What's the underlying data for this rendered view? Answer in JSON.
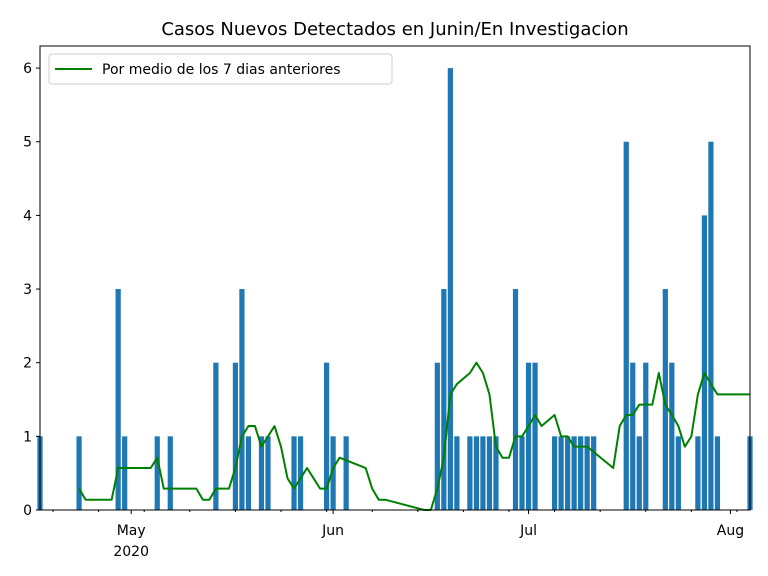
{
  "chart_data": {
    "type": "bar+line",
    "title": "Casos Nuevos Detectados en Junin/En Investigacion",
    "xlabel": "",
    "ylabel": "",
    "x_range": [
      "2020-04-17",
      "2020-08-04"
    ],
    "ylim": [
      0,
      6.3
    ],
    "yticks": [
      0,
      1,
      2,
      3,
      4,
      5,
      6
    ],
    "xticks": [
      {
        "date": "2020-05-01",
        "label": "May",
        "sublabel": "2020"
      },
      {
        "date": "2020-06-01",
        "label": "Jun",
        "sublabel": ""
      },
      {
        "date": "2020-07-01",
        "label": "Jul",
        "sublabel": ""
      },
      {
        "date": "2020-08-01",
        "label": "Aug",
        "sublabel": ""
      }
    ],
    "grid": false,
    "legend_position": "top-left",
    "bar_color": "#1f77b4",
    "line_color": "#008000",
    "bars": {
      "dates": [
        "2020-04-17",
        "2020-04-23",
        "2020-04-29",
        "2020-04-30",
        "2020-05-05",
        "2020-05-07",
        "2020-05-14",
        "2020-05-17",
        "2020-05-18",
        "2020-05-19",
        "2020-05-21",
        "2020-05-22",
        "2020-05-26",
        "2020-05-27",
        "2020-05-31",
        "2020-06-01",
        "2020-06-03",
        "2020-06-17",
        "2020-06-18",
        "2020-06-19",
        "2020-06-20",
        "2020-06-22",
        "2020-06-23",
        "2020-06-24",
        "2020-06-25",
        "2020-06-26",
        "2020-06-29",
        "2020-06-30",
        "2020-07-01",
        "2020-07-02",
        "2020-07-05",
        "2020-07-06",
        "2020-07-07",
        "2020-07-08",
        "2020-07-09",
        "2020-07-10",
        "2020-07-11",
        "2020-07-16",
        "2020-07-17",
        "2020-07-18",
        "2020-07-19",
        "2020-07-22",
        "2020-07-23",
        "2020-07-24",
        "2020-07-27",
        "2020-07-28",
        "2020-07-29",
        "2020-07-30",
        "2020-08-04"
      ],
      "values": [
        1,
        1,
        3,
        1,
        1,
        1,
        2,
        2,
        3,
        1,
        1,
        1,
        1,
        1,
        2,
        1,
        1,
        2,
        3,
        6,
        1,
        1,
        1,
        1,
        1,
        1,
        3,
        1,
        2,
        2,
        1,
        1,
        1,
        1,
        1,
        1,
        1,
        5,
        2,
        1,
        2,
        3,
        2,
        1,
        1,
        4,
        5,
        1,
        1
      ]
    },
    "series": [
      {
        "name": "Por medio de los 7 dias anteriores",
        "dates": [
          "2020-04-23",
          "2020-04-24",
          "2020-04-28",
          "2020-04-29",
          "2020-05-04",
          "2020-05-05",
          "2020-05-06",
          "2020-05-11",
          "2020-05-12",
          "2020-05-13",
          "2020-05-14",
          "2020-05-15",
          "2020-05-16",
          "2020-05-17",
          "2020-05-18",
          "2020-05-19",
          "2020-05-20",
          "2020-05-21",
          "2020-05-22",
          "2020-05-23",
          "2020-05-24",
          "2020-05-25",
          "2020-05-26",
          "2020-05-27",
          "2020-05-28",
          "2020-05-29",
          "2020-05-30",
          "2020-05-31",
          "2020-06-01",
          "2020-06-02",
          "2020-06-06",
          "2020-06-07",
          "2020-06-08",
          "2020-06-09",
          "2020-06-15",
          "2020-06-16",
          "2020-06-17",
          "2020-06-18",
          "2020-06-19",
          "2020-06-20",
          "2020-06-22",
          "2020-06-23",
          "2020-06-24",
          "2020-06-25",
          "2020-06-26",
          "2020-06-27",
          "2020-06-28",
          "2020-06-29",
          "2020-06-30",
          "2020-07-01",
          "2020-07-02",
          "2020-07-03",
          "2020-07-05",
          "2020-07-06",
          "2020-07-07",
          "2020-07-08",
          "2020-07-10",
          "2020-07-14",
          "2020-07-15",
          "2020-07-16",
          "2020-07-17",
          "2020-07-18",
          "2020-07-19",
          "2020-07-20",
          "2020-07-21",
          "2020-07-22",
          "2020-07-23",
          "2020-07-24",
          "2020-07-25",
          "2020-07-26",
          "2020-07-27",
          "2020-07-28",
          "2020-07-29",
          "2020-07-30",
          "2020-07-31",
          "2020-08-04"
        ],
        "values": [
          0.29,
          0.14,
          0.14,
          0.57,
          0.57,
          0.71,
          0.29,
          0.29,
          0.14,
          0.14,
          0.29,
          0.29,
          0.29,
          0.57,
          1.0,
          1.14,
          1.14,
          0.86,
          1.0,
          1.14,
          0.86,
          0.43,
          0.29,
          0.43,
          0.57,
          0.43,
          0.29,
          0.29,
          0.57,
          0.71,
          0.57,
          0.29,
          0.14,
          0.14,
          0.0,
          0.0,
          0.29,
          0.71,
          1.57,
          1.71,
          1.86,
          2.0,
          1.86,
          1.57,
          0.86,
          0.71,
          0.71,
          1.0,
          1.0,
          1.14,
          1.29,
          1.14,
          1.29,
          1.0,
          1.0,
          0.86,
          0.86,
          0.57,
          1.14,
          1.29,
          1.29,
          1.43,
          1.43,
          1.43,
          1.86,
          1.43,
          1.29,
          1.14,
          0.86,
          1.0,
          1.57,
          1.86,
          1.71,
          1.57,
          1.57,
          1.57
        ]
      }
    ]
  }
}
